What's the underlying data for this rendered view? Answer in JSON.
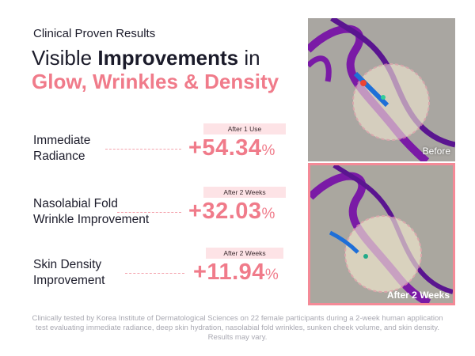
{
  "header": {
    "subtitle": "Clinical Proven Results",
    "title": {
      "start": "Visible",
      "bold": "Improvements",
      "end": "in"
    },
    "highlight": "Glow, Wrinkles & Density"
  },
  "results": [
    {
      "label": [
        "Immediate",
        "Radiance"
      ],
      "tag": "After 1 Use",
      "value": "+54.34",
      "unit": "%"
    },
    {
      "label": [
        "Nasolabial Fold",
        "Wrinkle Improvement"
      ],
      "tag": "After 2 Weeks",
      "value": "+32.03",
      "unit": "%"
    },
    {
      "label": [
        "Skin Density",
        "Improvement"
      ],
      "tag": "After 2 Weeks",
      "value": "+11.94",
      "unit": "%"
    }
  ],
  "images": {
    "before": "Before",
    "after": "After 2 Weeks"
  },
  "footnote": "Clinically tested by Korea Institute of Dermatological Sciences on 22 female participants during a 2-week human application test evaluating immediate radiance, deep skin hydration, nasolabial fold wrinkles, sunken cheek volume, and skin density. Results may vary."
}
